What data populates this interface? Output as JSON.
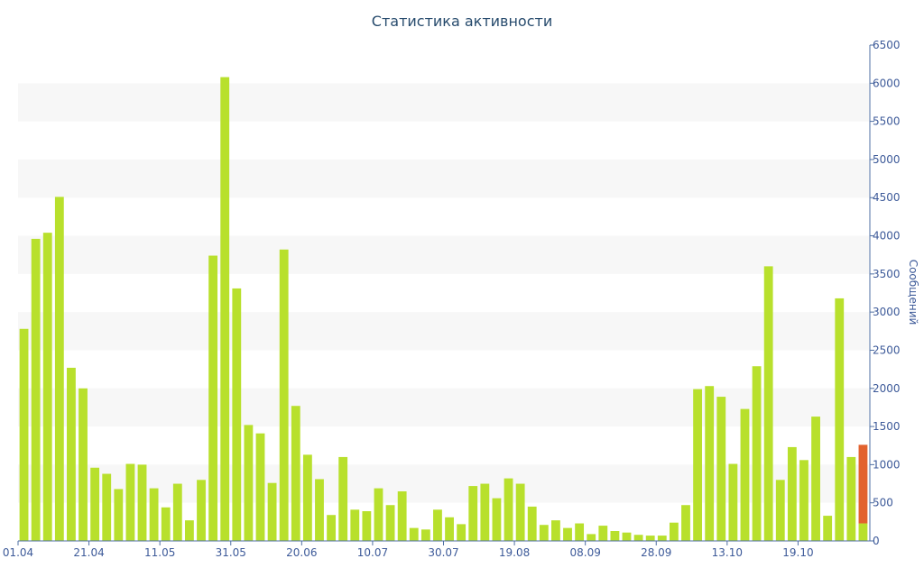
{
  "chart_data": {
    "type": "bar",
    "title": "Статистика активности",
    "ylabel": "Сообщений",
    "xlabel": "",
    "ylim": [
      0,
      6500
    ],
    "y_ticks": [
      0,
      500,
      1000,
      1500,
      2000,
      2500,
      3000,
      3500,
      4000,
      4500,
      5000,
      5500,
      6000,
      6500
    ],
    "y_axis_side": "right",
    "x_tick_labels": [
      "01.04",
      "21.04",
      "11.05",
      "31.05",
      "20.06",
      "10.07",
      "30.07",
      "19.08",
      "08.09",
      "28.09",
      "13.10",
      "19.10"
    ],
    "x_tick_positions": [
      0,
      6,
      12,
      18,
      24,
      30,
      36,
      42,
      48,
      54,
      60,
      66
    ],
    "colors": {
      "bar": "#b8e02c",
      "highlight": "#e2622e",
      "axis": "#4f6fa3",
      "band": "#f7f7f7"
    },
    "values": [
      2780,
      3960,
      4040,
      4510,
      2270,
      2000,
      960,
      880,
      680,
      1010,
      1000,
      690,
      440,
      750,
      270,
      800,
      3740,
      6080,
      3310,
      1520,
      1410,
      760,
      3820,
      1770,
      1130,
      810,
      340,
      1100,
      410,
      390,
      690,
      470,
      650,
      170,
      150,
      410,
      310,
      220,
      720,
      750,
      560,
      820,
      750,
      450,
      210,
      270,
      170,
      230,
      90,
      200,
      130,
      110,
      80,
      70,
      70,
      240,
      470,
      1990,
      2030,
      1890,
      1010,
      1730,
      2290,
      3600,
      800,
      1230,
      1060,
      1630,
      330,
      3180,
      1100,
      230
    ],
    "last_bar_extra": 1030
  }
}
